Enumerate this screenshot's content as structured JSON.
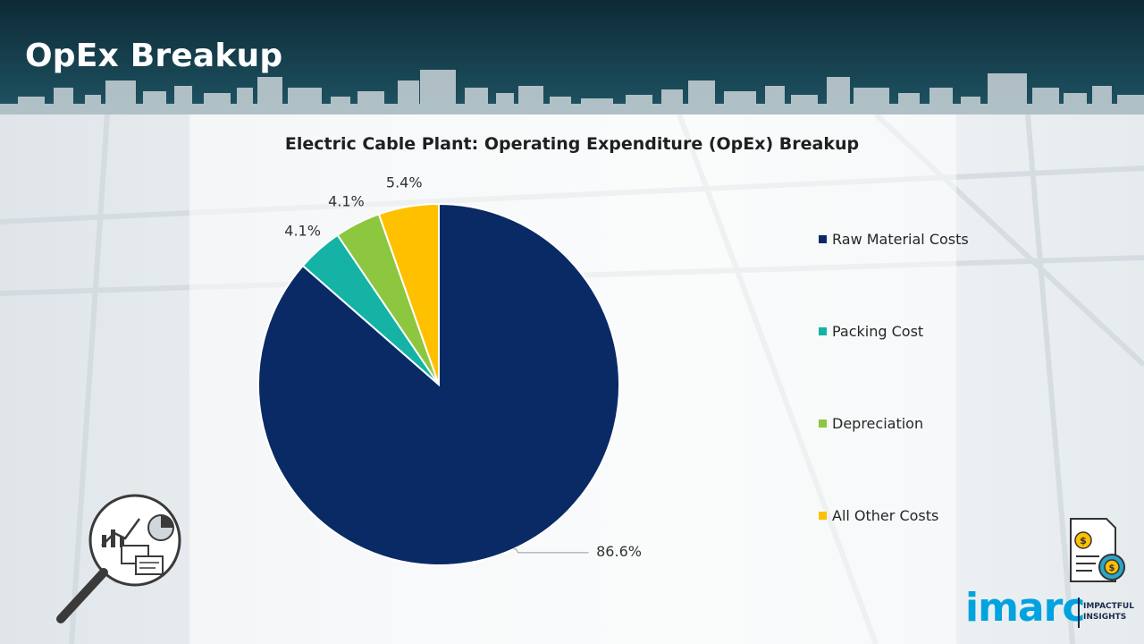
{
  "header": {
    "title": "OpEx Breakup"
  },
  "colors": {
    "header_bg": "#0d2a36",
    "accent": "#00a3e0"
  },
  "chart_data": {
    "type": "pie",
    "title": "Electric Cable Plant: Operating Expenditure (OpEx) Breakup",
    "categories": [
      "Raw Material Costs",
      "Packing Cost",
      "Depreciation",
      "All Other Costs"
    ],
    "values": [
      86.6,
      4.1,
      4.1,
      5.4
    ],
    "labels": [
      "86.6%",
      "4.1%",
      "4.1%",
      "5.4%"
    ],
    "colors": [
      "#0a2a66",
      "#14b3a6",
      "#8dc63f",
      "#ffc000"
    ],
    "legend_position": "right"
  },
  "icons": {
    "analytics": "magnifier-analytics-icon",
    "finance": "finance-document-icon"
  },
  "logo": {
    "name": "imarc",
    "tagline_line1": "IMPACTFUL",
    "tagline_line2": "INSIGHTS"
  }
}
